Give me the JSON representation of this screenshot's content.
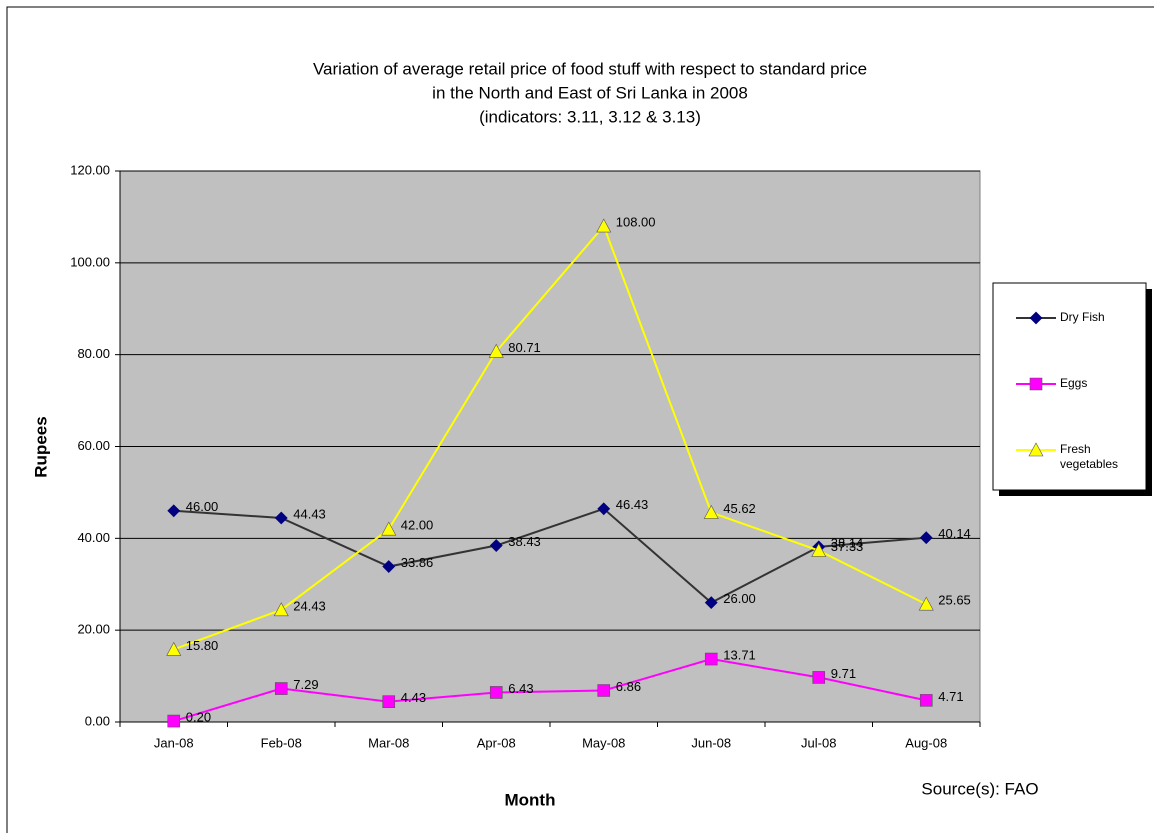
{
  "chart_data": {
    "type": "line",
    "title": "Variation of average retail price of food stuff with respect to standard price",
    "subtitle": "in the North and East of Sri Lanka in 2008",
    "subtitle2": "(indicators: 3.11, 3.12 & 3.13)",
    "x_label": "Month",
    "y_label": "Rupees",
    "source": "Source(s): FAO",
    "categories": [
      "Jan-08",
      "Feb-08",
      "Mar-08",
      "Apr-08",
      "May-08",
      "Jun-08",
      "Jul-08",
      "Aug-08"
    ],
    "series": [
      {
        "name": "Dry Fish",
        "color": "#000080",
        "line_color": "#333333",
        "marker": "diamond",
        "values": [
          46.0,
          44.43,
          33.86,
          38.43,
          46.43,
          26.0,
          38.14,
          40.14
        ],
        "value_labels": [
          "46.00",
          "44.43",
          "33.86",
          "38.43",
          "46.43",
          "26.00",
          "38.14",
          "40.14"
        ]
      },
      {
        "name": "Eggs",
        "color": "#ff00ff",
        "line_color": "#ff00ff",
        "marker": "square",
        "values": [
          0.2,
          7.29,
          4.43,
          6.43,
          6.86,
          13.71,
          9.71,
          4.71
        ],
        "value_labels": [
          "0.20",
          "7.29",
          "4.43",
          "6.43",
          "6.86",
          "13.71",
          "9.71",
          "4.71"
        ]
      },
      {
        "name": "Fresh vegetables",
        "color": "#ffff00",
        "line_color": "#ffff00",
        "marker": "triangle",
        "values": [
          15.8,
          24.43,
          42.0,
          80.71,
          108.0,
          45.62,
          37.33,
          25.65
        ],
        "value_labels": [
          "15.80",
          "24.43",
          "42.00",
          "80.71",
          "108.00",
          "45.62",
          "37.33",
          "25.65"
        ]
      }
    ],
    "ylim": [
      0,
      120
    ],
    "yticks": [
      {
        "value": 0,
        "label": "0.00"
      },
      {
        "value": 20,
        "label": "20.00"
      },
      {
        "value": 40,
        "label": "40.00"
      },
      {
        "value": 60,
        "label": "60.00"
      },
      {
        "value": 80,
        "label": "80.00"
      },
      {
        "value": 100,
        "label": "100.00"
      },
      {
        "value": 120,
        "label": "120.00"
      }
    ],
    "grid": true,
    "legend": "right",
    "plot_background": "#c0c0c0"
  }
}
